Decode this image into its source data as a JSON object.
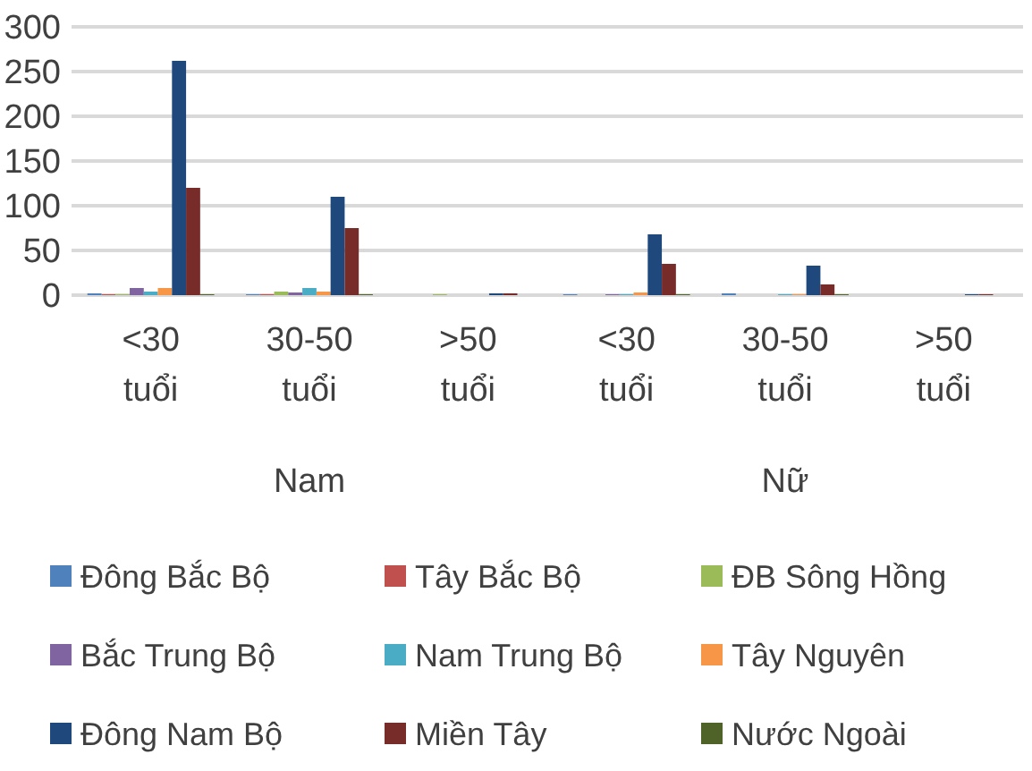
{
  "chart_data": {
    "type": "bar",
    "categories": [
      "<30 tuổi",
      "30-50 tuổi",
      ">50 tuổi",
      "<30 tuổi",
      "30-50 tuổi",
      ">50 tuổi"
    ],
    "annotations": [
      "Nam",
      "Nữ"
    ],
    "ylim": [
      0,
      300
    ],
    "yticks": [
      0,
      50,
      100,
      150,
      200,
      250,
      300
    ],
    "grid": "y",
    "legend": "bottom",
    "series": [
      {
        "name": "Đông Bắc Bộ",
        "color": "#4f81bd",
        "values": [
          2,
          1,
          0,
          1,
          2,
          0
        ]
      },
      {
        "name": "Tây Bắc Bộ",
        "color": "#c0504d",
        "values": [
          1,
          1,
          0,
          0,
          0,
          0
        ]
      },
      {
        "name": "ĐB Sông Hồng",
        "color": "#9bbb59",
        "values": [
          1,
          4,
          1,
          0,
          0,
          0
        ]
      },
      {
        "name": "Bắc Trung Bộ",
        "color": "#8064a2",
        "values": [
          8,
          3,
          0,
          1,
          0,
          0
        ]
      },
      {
        "name": "Nam Trung Bộ",
        "color": "#4bacc6",
        "values": [
          4,
          8,
          0,
          1,
          1,
          0
        ]
      },
      {
        "name": "Tây Nguyên",
        "color": "#f79646",
        "values": [
          8,
          4,
          0,
          3,
          1,
          0
        ]
      },
      {
        "name": "Đông Nam Bộ",
        "color": "#1f497d",
        "values": [
          262,
          110,
          2,
          68,
          33,
          1
        ]
      },
      {
        "name": "Miền Tây",
        "color": "#772c2a",
        "values": [
          120,
          75,
          2,
          35,
          12,
          1
        ]
      },
      {
        "name": "Nước Ngoài",
        "color": "#4f6228",
        "values": [
          1,
          1,
          0,
          1,
          1,
          0
        ]
      }
    ]
  }
}
